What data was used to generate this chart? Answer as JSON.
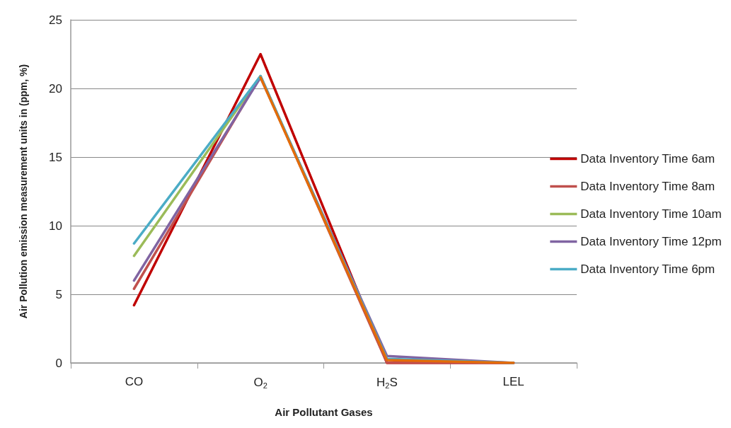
{
  "chart_data": {
    "type": "line",
    "xlabel": "Air Pollutant Gases",
    "ylabel": "Air Pollution emission measurement units in (ppm, %)",
    "categories": [
      "CO",
      "O$_{2}$",
      "H$_{2}$S",
      "LEL"
    ],
    "ylim": [
      0,
      25
    ],
    "yticks": [
      0,
      5,
      10,
      15,
      20,
      25
    ],
    "grid": "y",
    "legend": "right",
    "marker": "none",
    "line_style": "solid",
    "series": [
      {
        "name": "Data Inventory Time 6am",
        "color": "#c00000",
        "values": [
          4.2,
          22.5,
          0,
          0
        ]
      },
      {
        "name": "Data Inventory Time 8am",
        "color": "#c0504d",
        "values": [
          5.4,
          20.9,
          0,
          0
        ]
      },
      {
        "name": "Data Inventory Time 10am",
        "color": "#9bbb59",
        "values": [
          7.8,
          20.9,
          null,
          null
        ]
      },
      {
        "name": "Data Inventory Time 12pm",
        "color": "#8064a2",
        "values": [
          6,
          20.8,
          0.5,
          0
        ]
      },
      {
        "name": "Data Inventory Time 6pm",
        "color": "#4bacc6",
        "values": [
          8.7,
          20.9,
          0.3,
          0
        ]
      },
      {
        "color": "#e36c09",
        "values": [
          null,
          20.8,
          0.2,
          0
        ]
      }
    ]
  }
}
